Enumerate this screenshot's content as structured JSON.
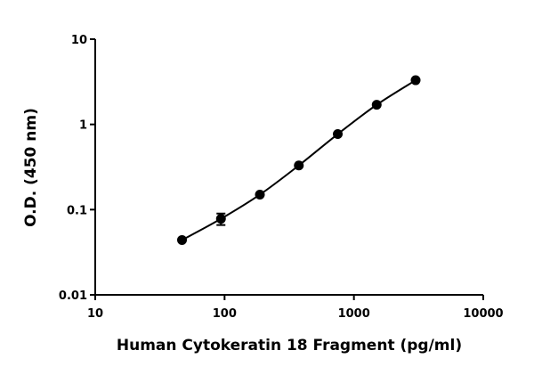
{
  "chart_data": {
    "type": "scatter",
    "x_label": "Human Cytokeratin 18 Fragment (pg/ml)",
    "y_label": "O.D. (450 nm)",
    "x": [
      46.875,
      93.75,
      187.5,
      375,
      750,
      1500,
      3000
    ],
    "values": [
      0.044,
      0.078,
      0.15,
      0.33,
      0.77,
      1.7,
      3.3
    ],
    "errors": [
      null,
      0.012,
      null,
      null,
      null,
      null,
      null
    ],
    "color": "#000000",
    "xscale": "log",
    "yscale": "log",
    "xlim": [
      10,
      10000
    ],
    "ylim": [
      0.01,
      10
    ],
    "xticks": [
      10,
      100,
      1000,
      10000
    ],
    "yticks": [
      0.01,
      0.1,
      1,
      10
    ],
    "fit_curve": true
  }
}
